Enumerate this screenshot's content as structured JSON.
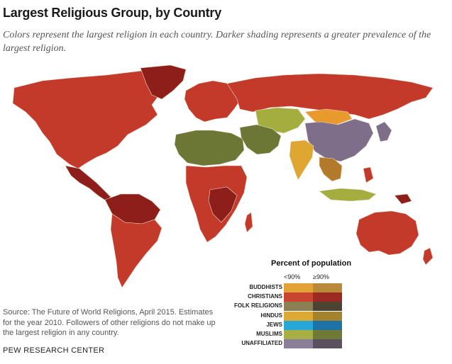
{
  "title": "Largest Religious Group, by Country",
  "subtitle": "Colors represent the largest religion in each country. Darker shading represents a greater prevalence of the largest religion.",
  "map": {
    "colors": {
      "christian_low": "#c33a2b",
      "christian_high": "#8e1e1a",
      "muslim_low": "#a3ae3e",
      "muslim_high": "#6c7635",
      "unaffiliated": "#7e6e8a",
      "buddhist_low": "#e99a2d",
      "buddhist_high": "#b37a2c",
      "hindu_low": "#dfa632",
      "jews_low": "#23a0d5",
      "folk_low": "#8a7f55",
      "ocean": "#ffffff",
      "border": "#e8d8c8"
    }
  },
  "legend": {
    "title": "Percent of population",
    "col_low": "<90%",
    "col_high": "≥90%",
    "rows": [
      {
        "label": "BUDDHISTS",
        "low": "#e3a236",
        "high": "#b98a3a"
      },
      {
        "label": "CHRISTIANS",
        "low": "#c9452f",
        "high": "#9a2a22"
      },
      {
        "label": "FOLK RELIGIONS",
        "low": "#8c7f54",
        "high": "#4c4332"
      },
      {
        "label": "HINDUS",
        "low": "#dcaa34",
        "high": "#a5832e"
      },
      {
        "label": "JEWS",
        "low": "#27a7d8",
        "high": "#1d73a8"
      },
      {
        "label": "MUSLIMS",
        "low": "#a6ae44",
        "high": "#6f7a36"
      },
      {
        "label": "UNAFFILIATED",
        "low": "#8a7e98",
        "high": "#5a5060"
      }
    ]
  },
  "source": "Source: The Future of World Religions, April 2015. Estimates for the year 2010. Followers of other religions do not make up the largest religion in any country.",
  "org": "PEW RESEARCH CENTER"
}
